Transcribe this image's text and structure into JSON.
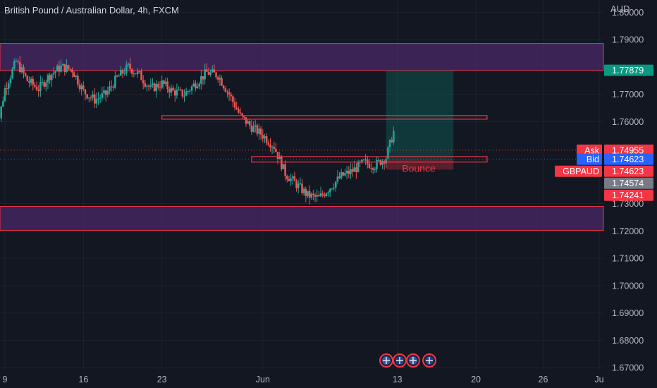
{
  "header": {
    "title": "British Pound / Australian Dollar, 4h, FXCM",
    "currency": "AUD"
  },
  "colors": {
    "background": "#131722",
    "up": "#26a69a",
    "down": "#ef5350",
    "zone_fill": "#4a2868",
    "zone_border": "#f23645",
    "ask": "#f23645",
    "bid": "#2962ff",
    "target": "#089981",
    "current_price_bg": "#787b86"
  },
  "price_axis": {
    "ticks": [
      "1.80000",
      "1.79000",
      "1.77000",
      "1.76000",
      "1.73000",
      "1.72000",
      "1.71000",
      "1.70000",
      "1.69000",
      "1.68000",
      "1.67000"
    ]
  },
  "time_axis": {
    "ticks": [
      "9",
      "16",
      "23",
      "Jun",
      "13",
      "20",
      "26",
      "Ju"
    ]
  },
  "price_labels": {
    "target": "1.77879",
    "ask_label": "Ask",
    "ask": "1.74955",
    "bid_label": "Bid",
    "bid": "1.74623",
    "symbol_label": "GBPAUD",
    "symbol_price": "1.74623",
    "current": "1.74574",
    "stop": "1.74241"
  },
  "annotations": {
    "bounce": "Bounce"
  },
  "chart_data": {
    "type": "candlestick",
    "title": "British Pound / Australian Dollar, 4h, FXCM",
    "ylabel": "AUD",
    "ylim": [
      1.6695,
      1.8045
    ],
    "xlim": [
      "2022-05-09",
      "2022-07-01"
    ],
    "grid": true,
    "zones": [
      {
        "name": "resistance",
        "low": 1.7787,
        "high": 1.7886
      },
      {
        "name": "support",
        "low": 1.7202,
        "high": 1.729
      }
    ],
    "levels": [
      {
        "start": "2022-05-23",
        "end": "2022-06-21",
        "low": 1.7609,
        "high": 1.7622
      },
      {
        "start": "2022-05-31",
        "end": "2022-06-21",
        "low": 1.7452,
        "high": 1.7472
      }
    ],
    "position": {
      "entry": 1.74623,
      "target": 1.77879,
      "stop": 1.74241,
      "start": "2022-06-12",
      "end": "2022-06-18"
    },
    "closes": [
      {
        "date": "2022-05-08",
        "close": 1.751
      },
      {
        "date": "2022-05-09",
        "close": 1.772
      },
      {
        "date": "2022-05-10",
        "close": 1.782
      },
      {
        "date": "2022-05-11",
        "close": 1.775
      },
      {
        "date": "2022-05-12",
        "close": 1.772
      },
      {
        "date": "2022-05-13",
        "close": 1.777
      },
      {
        "date": "2022-05-14",
        "close": 1.78
      },
      {
        "date": "2022-05-15",
        "close": 1.779
      },
      {
        "date": "2022-05-16",
        "close": 1.771
      },
      {
        "date": "2022-05-17",
        "close": 1.768
      },
      {
        "date": "2022-05-18",
        "close": 1.77
      },
      {
        "date": "2022-05-19",
        "close": 1.776
      },
      {
        "date": "2022-05-20",
        "close": 1.78
      },
      {
        "date": "2022-05-21",
        "close": 1.777
      },
      {
        "date": "2022-05-22",
        "close": 1.772
      },
      {
        "date": "2022-05-23",
        "close": 1.774
      },
      {
        "date": "2022-05-24",
        "close": 1.771
      },
      {
        "date": "2022-05-25",
        "close": 1.77
      },
      {
        "date": "2022-05-26",
        "close": 1.774
      },
      {
        "date": "2022-05-27",
        "close": 1.778
      },
      {
        "date": "2022-05-28",
        "close": 1.777
      },
      {
        "date": "2022-05-29",
        "close": 1.77
      },
      {
        "date": "2022-05-30",
        "close": 1.762
      },
      {
        "date": "2022-05-31",
        "close": 1.758
      },
      {
        "date": "2022-06-01",
        "close": 1.755
      },
      {
        "date": "2022-06-02",
        "close": 1.751
      },
      {
        "date": "2022-06-03",
        "close": 1.741
      },
      {
        "date": "2022-06-04",
        "close": 1.737
      },
      {
        "date": "2022-06-05",
        "close": 1.733
      },
      {
        "date": "2022-06-06",
        "close": 1.732
      },
      {
        "date": "2022-06-07",
        "close": 1.736
      },
      {
        "date": "2022-06-08",
        "close": 1.74
      },
      {
        "date": "2022-06-09",
        "close": 1.742
      },
      {
        "date": "2022-06-10",
        "close": 1.745
      },
      {
        "date": "2022-06-11",
        "close": 1.744
      },
      {
        "date": "2022-06-12",
        "close": 1.747
      },
      {
        "date": "2022-06-13",
        "close": 1.761
      },
      {
        "date": "2022-06-14",
        "close": 1.757
      },
      {
        "date": "2022-06-15",
        "close": 1.7457
      }
    ]
  }
}
